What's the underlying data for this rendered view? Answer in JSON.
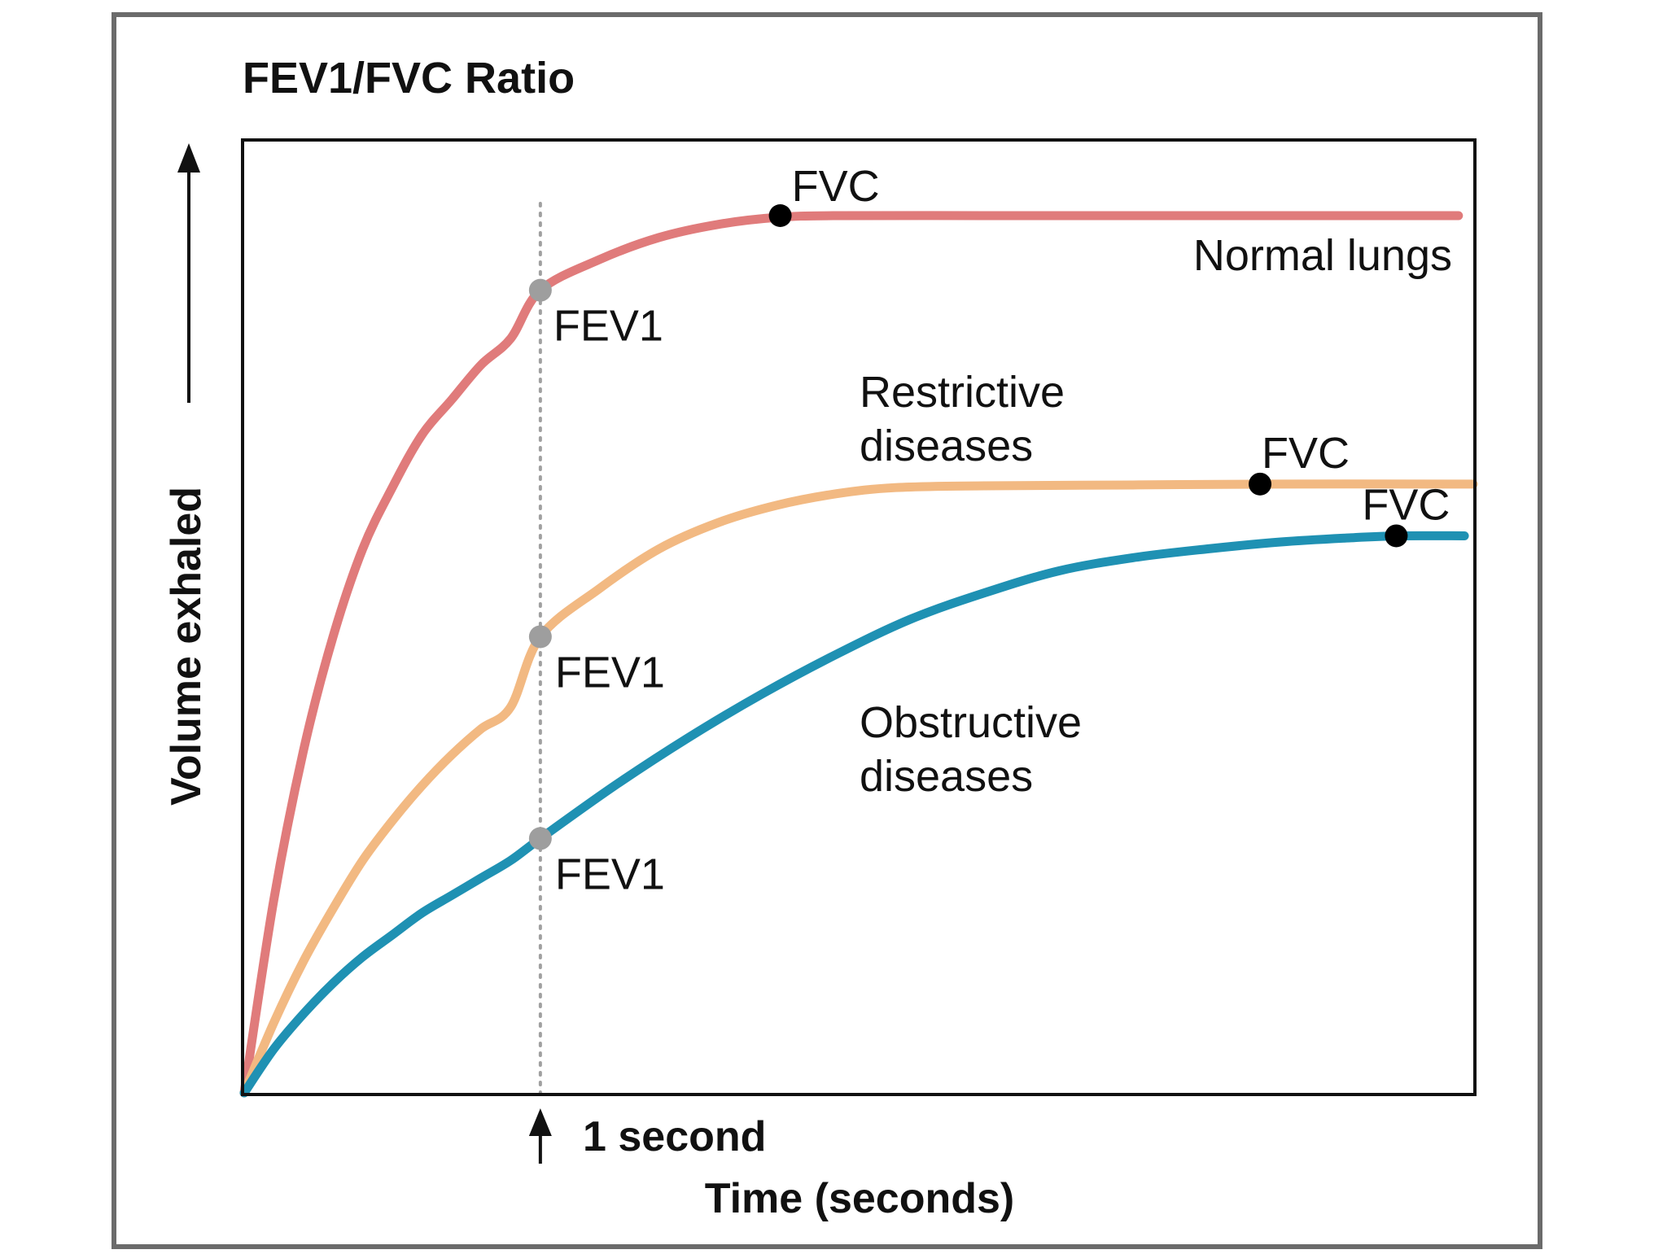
{
  "chart_data": {
    "type": "line",
    "title": "FEV1/FVC Ratio",
    "xlabel": "Time (seconds)",
    "ylabel": "Volume exhaled",
    "x_marker": {
      "x": 1,
      "label": "1 second"
    },
    "xlim": [
      0,
      4.15
    ],
    "ylim": [
      0,
      1
    ],
    "grid": false,
    "series": [
      {
        "name": "Normal lungs",
        "color": "#e07b7b",
        "x": [
          0,
          0.1,
          0.2,
          0.3,
          0.4,
          0.5,
          0.6,
          0.7,
          0.8,
          0.9,
          1.0,
          1.2,
          1.4,
          1.6,
          1.8,
          2.0,
          2.5,
          3.0,
          3.5,
          4.1
        ],
        "y": [
          0,
          0.22,
          0.39,
          0.52,
          0.62,
          0.69,
          0.75,
          0.79,
          0.83,
          0.86,
          0.915,
          0.95,
          0.975,
          0.99,
          0.998,
          1.0,
          1.0,
          1.0,
          1.0,
          1.0
        ],
        "fev1": {
          "x": 1,
          "y": 0.915,
          "label": "FEV1"
        },
        "fvc": {
          "x": 1.81,
          "y": 1.0,
          "label": "FVC"
        }
      },
      {
        "name": "Restrictive diseases",
        "color": "#f2b982",
        "x": [
          0,
          0.1,
          0.2,
          0.3,
          0.4,
          0.5,
          0.6,
          0.7,
          0.8,
          0.9,
          1.0,
          1.2,
          1.4,
          1.6,
          1.8,
          2.0,
          2.2,
          2.5,
          3.0,
          3.5,
          4.15
        ],
        "y": [
          0,
          0.08,
          0.15,
          0.21,
          0.265,
          0.31,
          0.35,
          0.385,
          0.415,
          0.44,
          0.52,
          0.575,
          0.62,
          0.65,
          0.67,
          0.683,
          0.69,
          0.692,
          0.693,
          0.694,
          0.694
        ],
        "fev1": {
          "x": 1,
          "y": 0.52,
          "label": "FEV1"
        },
        "fvc": {
          "x": 3.43,
          "y": 0.694,
          "label": "FVC"
        }
      },
      {
        "name": "Obstructive diseases",
        "color": "#1f91b3",
        "x": [
          0,
          0.1,
          0.2,
          0.3,
          0.4,
          0.5,
          0.6,
          0.7,
          0.8,
          0.9,
          1.0,
          1.25,
          1.5,
          1.75,
          2.0,
          2.25,
          2.5,
          2.75,
          3.0,
          3.25,
          3.5,
          3.75,
          3.9,
          4.12
        ],
        "y": [
          0,
          0.05,
          0.09,
          0.125,
          0.155,
          0.18,
          0.205,
          0.225,
          0.245,
          0.265,
          0.29,
          0.35,
          0.405,
          0.455,
          0.5,
          0.54,
          0.57,
          0.595,
          0.61,
          0.62,
          0.628,
          0.633,
          0.635,
          0.635
        ],
        "fev1": {
          "x": 1,
          "y": 0.29,
          "label": "FEV1"
        },
        "fvc": {
          "x": 3.89,
          "y": 0.635,
          "label": "FVC"
        }
      }
    ]
  },
  "labels": {
    "normal": [
      "Normal lungs"
    ],
    "restrictive": [
      "Restrictive",
      "diseases"
    ],
    "obstructive": [
      "Obstructive",
      "diseases"
    ]
  },
  "colors": {
    "frame": "#6b6b6b",
    "axes": "#111111",
    "fev1_point": "#9e9e9e",
    "fvc_point": "#000000",
    "marker_line": "#a0a0a0"
  }
}
